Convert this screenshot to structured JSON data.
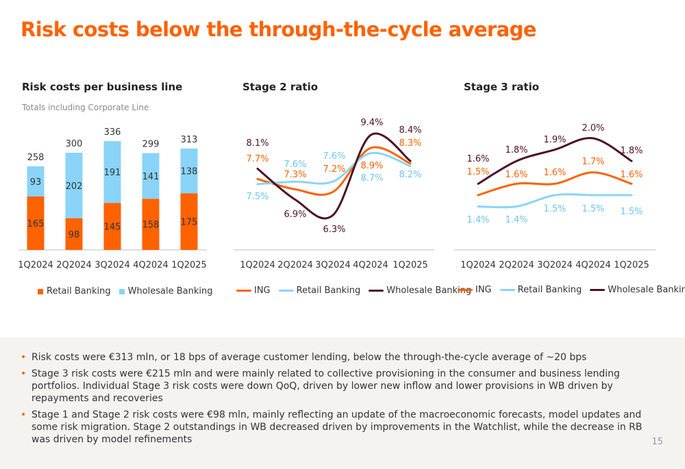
{
  "title": "Risk costs below the through-the-cycle average",
  "colors": {
    "accent": "#ff6200",
    "ing": "#ff6200",
    "retail": "#ff6200",
    "wholesale": "#89d4f8",
    "retail_line": "#89d4f8",
    "wholesale_line": "#4d0f24",
    "panel_bg": "#f5f3f0"
  },
  "chart_data": [
    {
      "type": "bar",
      "title": "Risk costs per business line",
      "subtitle": "Totals including Corporate Line",
      "categories": [
        "1Q2024",
        "2Q2024",
        "3Q2024",
        "4Q2024",
        "1Q2025"
      ],
      "series": [
        {
          "name": "Retail Banking",
          "values": [
            165,
            98,
            145,
            158,
            175
          ]
        },
        {
          "name": "Wholesale Banking",
          "values": [
            93,
            202,
            191,
            141,
            138
          ]
        }
      ],
      "totals": [
        258,
        300,
        336,
        299,
        313
      ],
      "stacked": true,
      "legend": "bottom"
    },
    {
      "type": "line",
      "title": "Stage 2 ratio",
      "categories": [
        "1Q2024",
        "2Q2024",
        "3Q2024",
        "4Q2024",
        "1Q2025"
      ],
      "series": [
        {
          "name": "ING",
          "values": [
            7.7,
            7.3,
            7.2,
            8.9,
            8.3
          ],
          "labels": [
            "7.7%",
            "7.3%",
            "7.2%",
            "8.9%",
            "8.3%"
          ]
        },
        {
          "name": "Retail Banking",
          "values": [
            7.5,
            7.6,
            7.6,
            8.7,
            8.2
          ],
          "labels": [
            "7.5%",
            "7.6%",
            "7.6%",
            "8.7%",
            "8.2%"
          ]
        },
        {
          "name": "Wholesale Banking",
          "values": [
            8.1,
            6.9,
            6.3,
            9.4,
            8.4
          ],
          "labels": [
            "8.1%",
            "6.9%",
            "6.3%",
            "9.4%",
            "8.4%"
          ]
        }
      ],
      "legend": "bottom"
    },
    {
      "type": "line",
      "title": "Stage 3 ratio",
      "categories": [
        "1Q2024",
        "2Q2024",
        "3Q2024",
        "4Q2024",
        "1Q2025"
      ],
      "series": [
        {
          "name": "ING",
          "values": [
            1.5,
            1.6,
            1.6,
            1.7,
            1.6
          ],
          "labels": [
            "1.5%",
            "1.6%",
            "1.6%",
            "1.7%",
            "1.6%"
          ]
        },
        {
          "name": "Retail Banking",
          "values": [
            1.4,
            1.4,
            1.5,
            1.5,
            1.5
          ],
          "labels": [
            "1.4%",
            "1.4%",
            "1.5%",
            "1.5%",
            "1.5%"
          ]
        },
        {
          "name": "Wholesale Banking",
          "values": [
            1.6,
            1.8,
            1.9,
            2.0,
            1.8
          ],
          "labels": [
            "1.6%",
            "1.8%",
            "1.9%",
            "2.0%",
            "1.8%"
          ]
        }
      ],
      "legend": "bottom"
    }
  ],
  "summary": [
    "Risk costs were €313 mln, or 18 bps of average customer lending, below the through-the-cycle average of ~20 bps",
    "Stage 3 risk costs were €215 mln and were mainly related to collective provisioning in the consumer and business lending portfolios. Individual Stage 3 risk costs were down QoQ, driven by lower new inflow and lower provisions in WB driven by repayments and recoveries",
    "Stage 1 and Stage 2 risk costs were €98 mln, mainly reflecting an update of the macroeconomic forecasts, model updates and some risk migration. Stage 2 outstandings in WB decreased driven by improvements in the Watchlist, while the decrease in RB was driven by model refinements"
  ],
  "page_number": "15"
}
